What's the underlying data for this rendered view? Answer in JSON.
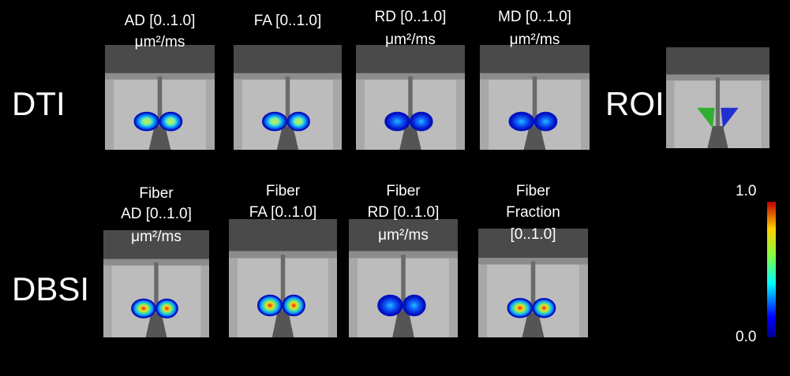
{
  "rows": [
    {
      "label": "DTI",
      "panels": [
        {
          "title_lines": [
            "AD [0..1.0]",
            "μm²/ms"
          ]
        },
        {
          "title_lines": [
            "FA [0..1.0]"
          ]
        },
        {
          "title_lines": [
            "RD [0..1.0]",
            "μm²/ms"
          ]
        },
        {
          "title_lines": [
            "MD [0..1.0]",
            "μm²/ms"
          ]
        }
      ]
    },
    {
      "label": "DBSI",
      "panels": [
        {
          "title_lines": [
            "Fiber",
            "AD [0..1.0]",
            "μm²/ms"
          ]
        },
        {
          "title_lines": [
            "Fiber",
            "FA [0..1.0]"
          ]
        },
        {
          "title_lines": [
            "Fiber",
            "RD [0..1.0]",
            "μm²/ms"
          ]
        },
        {
          "title_lines": [
            "Fiber",
            "Fraction",
            "[0..1.0]"
          ]
        }
      ]
    }
  ],
  "roi": {
    "label": "ROI"
  },
  "colorbar": {
    "max": "1.0",
    "min": "0.0"
  }
}
